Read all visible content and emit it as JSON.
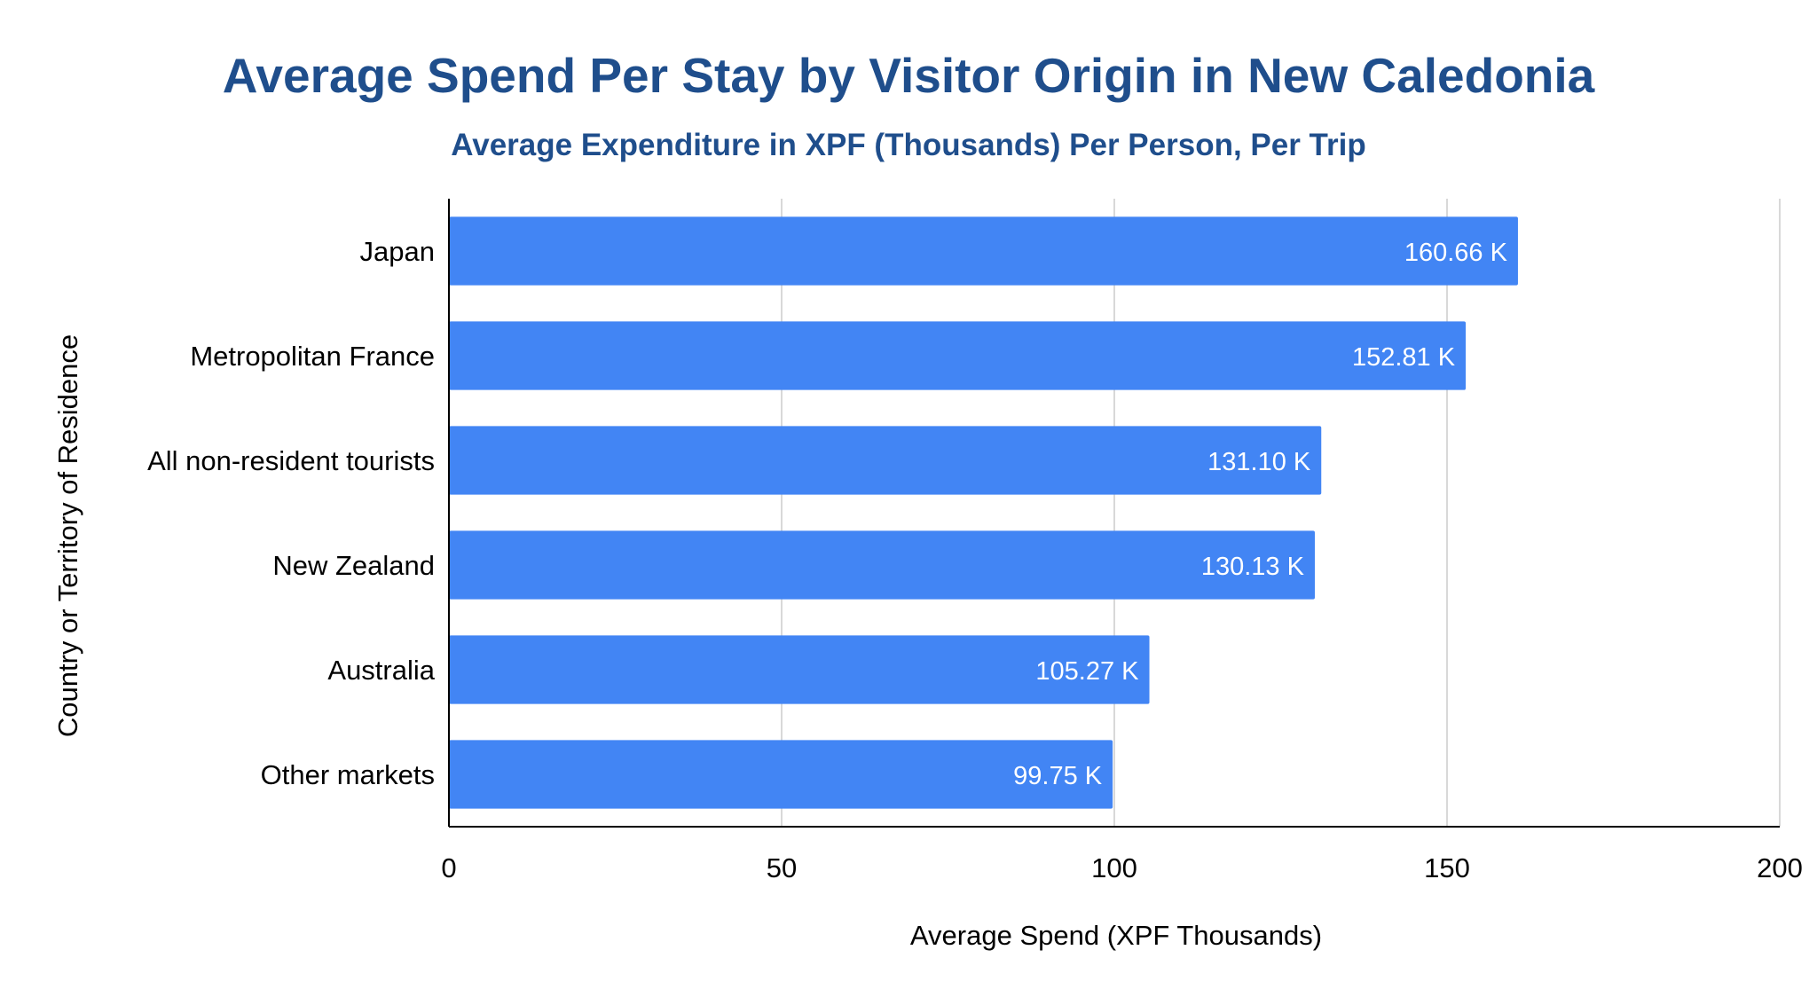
{
  "chart_data": {
    "type": "bar",
    "orientation": "horizontal",
    "title": "Average Spend Per Stay by Visitor Origin in New Caledonia",
    "subtitle": "Average Expenditure in XPF (Thousands) Per Person, Per Trip",
    "xlabel": "Average Spend (XPF Thousands)",
    "ylabel": "Country or Territory of Residence",
    "xlim": [
      0,
      200
    ],
    "xticks": [
      "0",
      "50",
      "100",
      "150",
      "200"
    ],
    "grid": true,
    "legend": "none",
    "categories": [
      "Japan",
      "Metropolitan France",
      "All non-resident tourists",
      "New Zealand",
      "Australia",
      "Other markets"
    ],
    "values": [
      160.66,
      152.81,
      131.1,
      130.13,
      105.27,
      99.75
    ],
    "data_labels": [
      "160.66 K",
      "152.81 K",
      "131.10 K",
      "130.13 K",
      "105.27 K",
      "99.75 K"
    ],
    "colors": {
      "bar": "#4285f4",
      "title": "#1f4e8c",
      "grid": "#cccccc",
      "axis": "#000000",
      "label_inside": "#ffffff",
      "text": "#000000"
    }
  }
}
